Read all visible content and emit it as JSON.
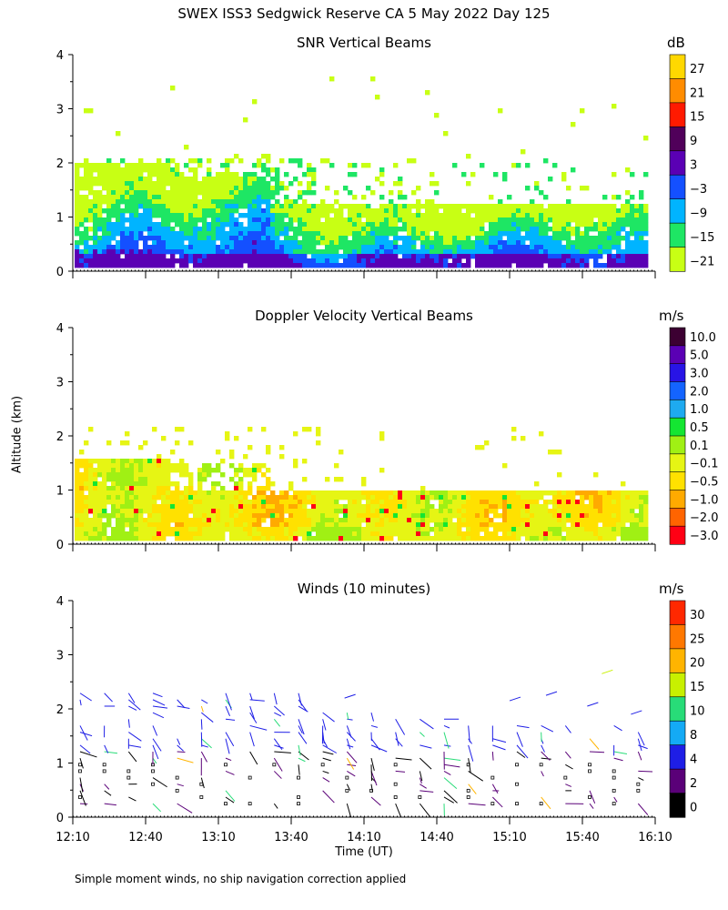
{
  "page": {
    "title": "SWEX ISS3 Sedgwick Reserve CA   5 May 2022 Day 125",
    "ylabel": "Altitude (km)",
    "xlabel": "Time (UT)",
    "footnote": "Simple moment winds, no ship navigation correction applied"
  },
  "chart_data": [
    {
      "type": "heatmap",
      "title": "SNR Vertical Beams",
      "unit": "dB",
      "xlabel": "Time (UT)",
      "ylabel": "Altitude (km)",
      "xlim": [
        0,
        240
      ],
      "ylim": [
        0,
        4
      ],
      "yticks": [
        0,
        1,
        2,
        3,
        4
      ],
      "colorbar": {
        "labels": [
          "27",
          "21",
          "15",
          "9",
          "3",
          "−3",
          "−9",
          "−15",
          "−21"
        ],
        "colors": [
          "#ffd800",
          "#ff8c00",
          "#ff1a00",
          "#50005a",
          "#5a00b4",
          "#1450ff",
          "#00b4ff",
          "#1ee664",
          "#c8ff14"
        ]
      }
    },
    {
      "type": "heatmap",
      "title": "Doppler Velocity Vertical Beams",
      "unit": "m/s",
      "xlabel": "Time (UT)",
      "ylabel": "Altitude (km)",
      "xlim": [
        0,
        240
      ],
      "ylim": [
        0,
        4
      ],
      "yticks": [
        0,
        1,
        2,
        3,
        4
      ],
      "colorbar": {
        "labels": [
          "10.0",
          "5.0",
          "3.0",
          "2.0",
          "1.0",
          "0.5",
          "0.1",
          "−0.1",
          "−0.5",
          "−1.0",
          "−2.0",
          "−3.0"
        ],
        "colors": [
          "#3c0032",
          "#5a00b4",
          "#2814e6",
          "#1464ff",
          "#1eaaf0",
          "#14e632",
          "#a0f014",
          "#e6f514",
          "#ffe100",
          "#ffaa00",
          "#ff6400",
          "#ff0014"
        ]
      }
    },
    {
      "type": "scatter",
      "title": "Winds (10 minutes)",
      "unit": "m/s",
      "xlabel": "Time (UT)",
      "ylabel": "Altitude (km)",
      "xlim": [
        0,
        240
      ],
      "ylim": [
        0,
        4
      ],
      "yticks": [
        0,
        1,
        2,
        3,
        4
      ],
      "xticks": [
        "12:10",
        "12:40",
        "13:10",
        "13:40",
        "14:10",
        "14:40",
        "15:10",
        "15:40",
        "16:10"
      ],
      "colorbar": {
        "labels": [
          "30",
          "25",
          "20",
          "15",
          "10",
          "8",
          "4",
          "2",
          "0"
        ],
        "colors": [
          "#ff2800",
          "#ff7800",
          "#ffb400",
          "#c8f000",
          "#28dc78",
          "#14aaf5",
          "#1e1ee6",
          "#5a0078",
          "#000000"
        ]
      }
    }
  ]
}
